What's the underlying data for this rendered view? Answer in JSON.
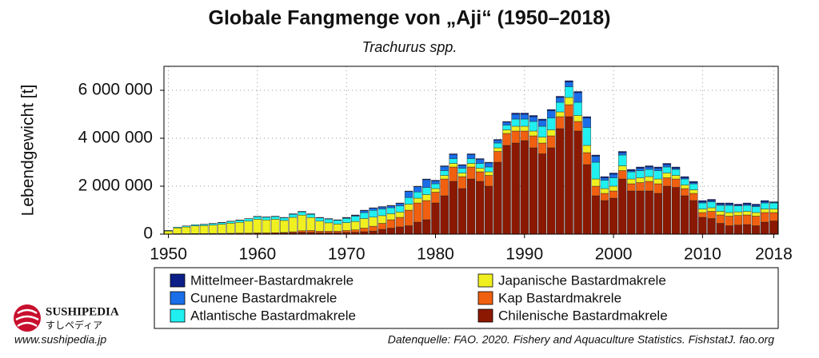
{
  "chart_data": {
    "type": "stacked_bar",
    "title": "Globale Fangmenge von „Aji“ (1950–2018)",
    "subtitle": "Trachurus spp.",
    "y_label": "Lebendgewicht [t]",
    "x": [
      1950,
      1951,
      1952,
      1953,
      1954,
      1955,
      1956,
      1957,
      1958,
      1959,
      1960,
      1961,
      1962,
      1963,
      1964,
      1965,
      1966,
      1967,
      1968,
      1969,
      1970,
      1971,
      1972,
      1973,
      1974,
      1975,
      1976,
      1977,
      1978,
      1979,
      1980,
      1981,
      1982,
      1983,
      1984,
      1985,
      1986,
      1987,
      1988,
      1989,
      1990,
      1991,
      1992,
      1993,
      1994,
      1995,
      1996,
      1997,
      1998,
      1999,
      2000,
      2001,
      2002,
      2003,
      2004,
      2005,
      2006,
      2007,
      2008,
      2009,
      2010,
      2011,
      2012,
      2013,
      2014,
      2015,
      2016,
      2017,
      2018
    ],
    "series": [
      {
        "name": "Chilenische Bastardmakrele",
        "color": "#8b1800",
        "values": [
          10000,
          20000,
          20000,
          25000,
          25000,
          30000,
          30000,
          35000,
          40000,
          40000,
          50000,
          50000,
          60000,
          50000,
          60000,
          80000,
          70000,
          60000,
          60000,
          60000,
          70000,
          80000,
          100000,
          130000,
          200000,
          250000,
          300000,
          350000,
          500000,
          600000,
          1300000,
          1600000,
          2200000,
          1900000,
          2300000,
          2200000,
          2000000,
          3000000,
          3700000,
          3800000,
          3900000,
          3600000,
          3350000,
          3600000,
          4400000,
          4900000,
          4300000,
          2900000,
          1600000,
          1400000,
          1500000,
          2300000,
          1800000,
          1800000,
          1800000,
          1700000,
          2000000,
          1950000,
          1600000,
          1400000,
          700000,
          650000,
          450000,
          350000,
          380000,
          400000,
          350000,
          500000,
          550000
        ]
      },
      {
        "name": "Kap Bastardmakrele",
        "color": "#f06010",
        "values": [
          0,
          0,
          0,
          0,
          0,
          0,
          0,
          0,
          0,
          0,
          0,
          0,
          0,
          20000,
          40000,
          60000,
          80000,
          60000,
          60000,
          60000,
          80000,
          100000,
          150000,
          200000,
          250000,
          350000,
          400000,
          650000,
          800000,
          800000,
          450000,
          700000,
          600000,
          500000,
          500000,
          400000,
          450000,
          450000,
          500000,
          500000,
          400000,
          500000,
          450000,
          500000,
          500000,
          500000,
          400000,
          500000,
          400000,
          300000,
          300000,
          350000,
          300000,
          350000,
          400000,
          400000,
          350000,
          350000,
          300000,
          300000,
          200000,
          300000,
          350000,
          400000,
          400000,
          400000,
          400000,
          400000,
          350000
        ]
      },
      {
        "name": "Japanische Bastardmakrele",
        "color": "#f0f020",
        "values": [
          120000,
          240000,
          280000,
          320000,
          330000,
          350000,
          380000,
          420000,
          450000,
          500000,
          570000,
          540000,
          560000,
          500000,
          600000,
          650000,
          540000,
          420000,
          350000,
          300000,
          330000,
          350000,
          400000,
          380000,
          320000,
          250000,
          220000,
          250000,
          200000,
          250000,
          150000,
          150000,
          150000,
          150000,
          150000,
          150000,
          150000,
          150000,
          150000,
          200000,
          200000,
          200000,
          250000,
          250000,
          200000,
          300000,
          250000,
          300000,
          300000,
          200000,
          200000,
          200000,
          200000,
          200000,
          200000,
          200000,
          200000,
          150000,
          150000,
          150000,
          150000,
          150000,
          150000,
          150000,
          150000,
          150000,
          150000,
          150000,
          150000
        ]
      },
      {
        "name": "Atlantische Bastardmakrele",
        "color": "#20f0f0",
        "values": [
          20000,
          30000,
          40000,
          45000,
          50000,
          60000,
          70000,
          80000,
          90000,
          100000,
          110000,
          115000,
          115000,
          115000,
          130000,
          140000,
          140000,
          140000,
          160000,
          160000,
          180000,
          220000,
          250000,
          280000,
          280000,
          250000,
          260000,
          280000,
          260000,
          300000,
          200000,
          200000,
          200000,
          200000,
          200000,
          200000,
          200000,
          200000,
          200000,
          300000,
          300000,
          400000,
          450000,
          500000,
          400000,
          450000,
          550000,
          750000,
          700000,
          350000,
          350000,
          450000,
          300000,
          300000,
          300000,
          350000,
          250000,
          250000,
          250000,
          250000,
          250000,
          250000,
          250000,
          300000,
          250000,
          250000,
          250000,
          250000,
          250000
        ]
      },
      {
        "name": "Cunene Bastardmakrele",
        "color": "#1a6ee8",
        "values": [
          0,
          0,
          0,
          0,
          0,
          0,
          0,
          0,
          0,
          0,
          0,
          0,
          0,
          0,
          0,
          0,
          0,
          0,
          0,
          0,
          20000,
          30000,
          80000,
          90000,
          80000,
          80000,
          100000,
          250000,
          220000,
          320000,
          120000,
          170000,
          170000,
          120000,
          170000,
          170000,
          170000,
          120000,
          120000,
          200000,
          200000,
          200000,
          250000,
          300000,
          200000,
          200000,
          400000,
          400000,
          250000,
          100000,
          150000,
          100000,
          50000,
          100000,
          100000,
          100000,
          100000,
          50000,
          50000,
          50000,
          50000,
          50000,
          50000,
          50000,
          30000,
          50000,
          50000,
          50000,
          30000
        ]
      },
      {
        "name": "Mittelmeer-Bastardmakrele",
        "color": "#0c1f88",
        "values": [
          5000,
          5000,
          5000,
          5000,
          10000,
          10000,
          10000,
          10000,
          10000,
          10000,
          15000,
          15000,
          15000,
          15000,
          20000,
          20000,
          20000,
          20000,
          20000,
          20000,
          20000,
          20000,
          20000,
          20000,
          20000,
          20000,
          20000,
          20000,
          20000,
          30000,
          30000,
          30000,
          30000,
          30000,
          30000,
          30000,
          30000,
          30000,
          30000,
          50000,
          50000,
          50000,
          50000,
          50000,
          50000,
          50000,
          50000,
          50000,
          50000,
          50000,
          50000,
          50000,
          50000,
          50000,
          50000,
          50000,
          50000,
          50000,
          50000,
          50000,
          50000,
          50000,
          50000,
          50000,
          40000,
          50000,
          50000,
          50000,
          20000
        ]
      }
    ],
    "xlim": [
      1949.5,
      2018.5
    ],
    "xticks": [
      1950,
      1960,
      1970,
      1980,
      1990,
      2000,
      2010,
      2018
    ],
    "ylim": [
      0,
      7000000
    ],
    "yticks": [
      0,
      {
        "value": 2000000,
        "label": "2 000 000"
      },
      {
        "value": 4000000,
        "label": "4 000 000"
      },
      {
        "value": 6000000,
        "label": "6 000 000"
      }
    ],
    "grid": true,
    "source": "Datenquelle: FAO. 2020. Fishery and Aquaculture Statistics. FishstatJ. fao.org"
  },
  "branding": {
    "name": "SUSHIPEDIA",
    "kana": "すしペディア",
    "url": "www.sushipedia.jp"
  }
}
